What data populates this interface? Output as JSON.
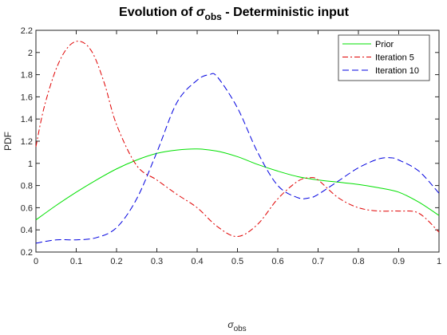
{
  "chart_data": {
    "type": "line",
    "title_main": "Evolution of ",
    "title_symbol": "σ",
    "title_subscript": "obs",
    "title_tail": " - Deterministic input",
    "xlabel_symbol": "σ",
    "xlabel_subscript": "obs",
    "ylabel": "PDF",
    "xlim": [
      0,
      1
    ],
    "ylim": [
      0.2,
      2.2
    ],
    "x_ticks": [
      "0",
      "0.1",
      "0.2",
      "0.3",
      "0.4",
      "0.5",
      "0.6",
      "0.7",
      "0.8",
      "0.9",
      "1"
    ],
    "y_ticks": [
      "0.2",
      "0.4",
      "0.6",
      "0.8",
      "1",
      "1.2",
      "1.4",
      "1.6",
      "1.8",
      "2",
      "2.2"
    ],
    "grid": false,
    "legend_position": "top-right",
    "series": [
      {
        "name": "Prior",
        "color": "#00e000",
        "dash": "solid",
        "x": [
          0,
          0.05,
          0.1,
          0.15,
          0.2,
          0.25,
          0.3,
          0.35,
          0.4,
          0.45,
          0.5,
          0.55,
          0.6,
          0.65,
          0.7,
          0.75,
          0.8,
          0.85,
          0.9,
          0.95,
          1.0
        ],
        "y": [
          0.49,
          0.62,
          0.74,
          0.85,
          0.95,
          1.03,
          1.09,
          1.12,
          1.13,
          1.11,
          1.06,
          0.99,
          0.93,
          0.88,
          0.85,
          0.83,
          0.81,
          0.78,
          0.74,
          0.65,
          0.53
        ]
      },
      {
        "name": "Iteration 5",
        "color": "#e00000",
        "dash": "dashdot",
        "x": [
          0,
          0.02,
          0.05,
          0.08,
          0.11,
          0.14,
          0.17,
          0.2,
          0.25,
          0.3,
          0.35,
          0.4,
          0.45,
          0.5,
          0.55,
          0.6,
          0.65,
          0.68,
          0.7,
          0.75,
          0.8,
          0.85,
          0.9,
          0.95,
          1.0
        ],
        "y": [
          1.15,
          1.5,
          1.85,
          2.05,
          2.1,
          2.0,
          1.72,
          1.35,
          0.98,
          0.85,
          0.72,
          0.6,
          0.43,
          0.34,
          0.45,
          0.68,
          0.84,
          0.87,
          0.85,
          0.69,
          0.6,
          0.57,
          0.57,
          0.55,
          0.38
        ]
      },
      {
        "name": "Iteration 10",
        "color": "#0000e0",
        "dash": "dashed",
        "x": [
          0,
          0.05,
          0.1,
          0.15,
          0.2,
          0.25,
          0.3,
          0.35,
          0.4,
          0.43,
          0.45,
          0.5,
          0.55,
          0.6,
          0.65,
          0.68,
          0.7,
          0.75,
          0.8,
          0.85,
          0.88,
          0.9,
          0.95,
          1.0
        ],
        "y": [
          0.28,
          0.31,
          0.31,
          0.33,
          0.42,
          0.68,
          1.1,
          1.55,
          1.75,
          1.8,
          1.78,
          1.5,
          1.1,
          0.8,
          0.69,
          0.69,
          0.72,
          0.84,
          0.96,
          1.04,
          1.05,
          1.03,
          0.93,
          0.73
        ]
      }
    ]
  }
}
